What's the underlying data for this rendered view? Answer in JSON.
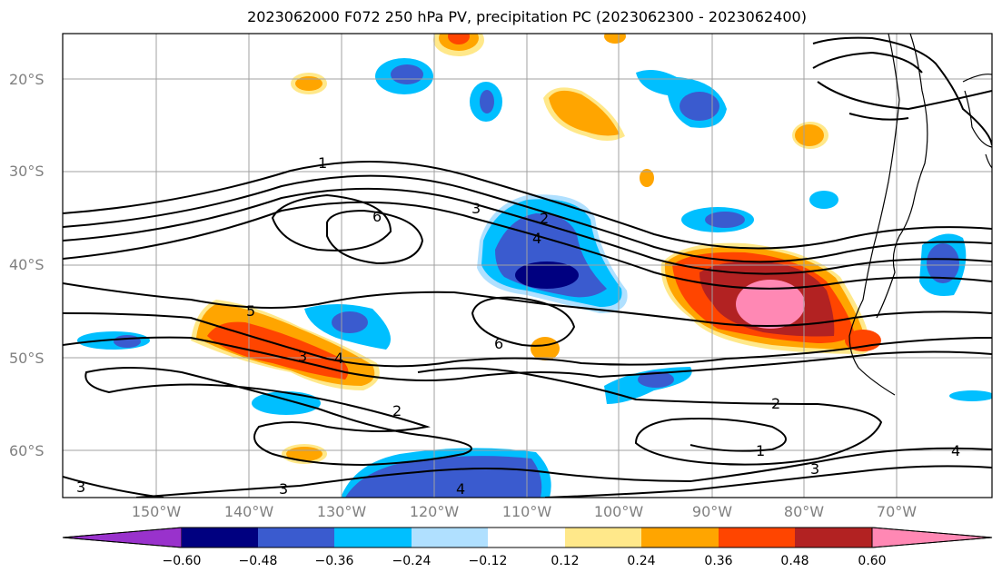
{
  "title": "2023062000 F072 250 hPa PV, precipitation PC (2023062300 - 2023062400)",
  "latitude_labels": [
    "20°S",
    "30°S",
    "40°S",
    "50°S",
    "60°S"
  ],
  "longitude_labels": [
    "150°W",
    "140°W",
    "130°W",
    "120°W",
    "110°W",
    "100°W",
    "90°W",
    "80°W",
    "70°W"
  ],
  "colorbar": {
    "ticks": [
      "−0.60",
      "−0.48",
      "−0.36",
      "−0.24",
      "−0.12",
      "0.12",
      "0.24",
      "0.36",
      "0.48",
      "0.60"
    ],
    "colors": [
      "#9932cc",
      "#000080",
      "#3a5bcf",
      "#00bfff",
      "#b0e0ff",
      "#ffffff",
      "#ffe88a",
      "#ffa500",
      "#ff4500",
      "#b22222",
      "#ff88b4"
    ]
  },
  "contour_labels": [
    "1",
    "1",
    "2",
    "2",
    "2",
    "3",
    "3",
    "3",
    "3",
    "3",
    "4",
    "4",
    "4",
    "4",
    "5",
    "6",
    "6"
  ]
}
